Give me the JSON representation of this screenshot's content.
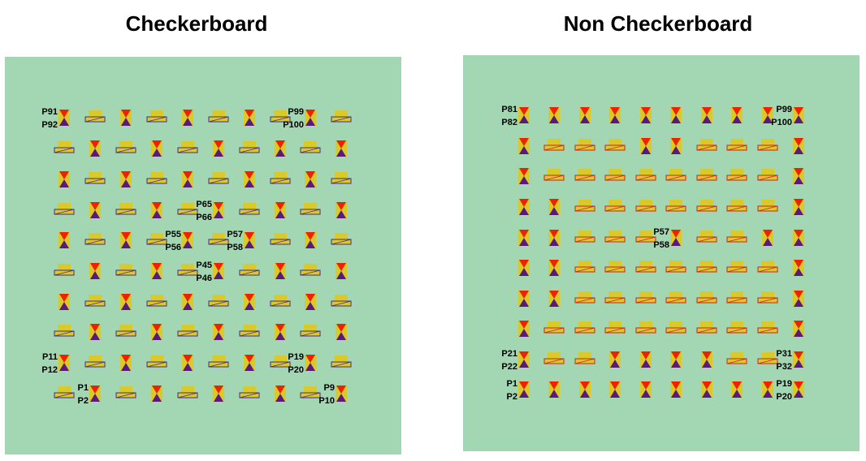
{
  "panels": [
    {
      "title": "Checkerboard",
      "labels": [
        {
          "top": "P91",
          "bottom": "P92"
        },
        {
          "top": "P99",
          "bottom": "P100"
        },
        {
          "top": "P65",
          "bottom": "P66"
        },
        {
          "top": "P55",
          "bottom": "P56"
        },
        {
          "top": "P57",
          "bottom": "P58"
        },
        {
          "top": "P45",
          "bottom": "P46"
        },
        {
          "top": "P11",
          "bottom": "P12"
        },
        {
          "top": "P19",
          "bottom": "P20"
        },
        {
          "top": "P1",
          "bottom": "P2"
        },
        {
          "top": "P9",
          "bottom": "P10"
        }
      ]
    },
    {
      "title": "Non Checkerboard",
      "labels": [
        {
          "top": "P81",
          "bottom": "P82"
        },
        {
          "top": "P99",
          "bottom": "P100"
        },
        {
          "top": "P57",
          "bottom": "P58"
        },
        {
          "top": "P21",
          "bottom": "P22"
        },
        {
          "top": "P31",
          "bottom": "P32"
        },
        {
          "top": "P1",
          "bottom": "P2"
        },
        {
          "top": "P19",
          "bottom": "P20"
        }
      ]
    }
  ]
}
